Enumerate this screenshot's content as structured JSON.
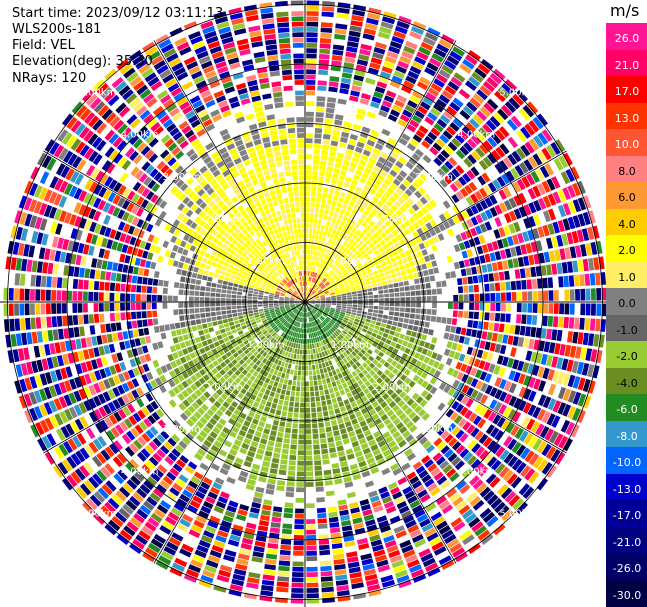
{
  "header": {
    "start_time": "Start time: 2023/09/12 03:11:13",
    "instrument": "WLS200s-181",
    "field": "Field: VEL",
    "elevation": "Elevation(deg): 35.30",
    "nrays": "NRays: 120"
  },
  "colorbar": {
    "unit": "m/s",
    "labels": [
      "26.0",
      "21.0",
      "17.0",
      "13.0",
      "10.0",
      "8.0",
      "6.0",
      "4.0",
      "2.0",
      "1.0",
      "0.0",
      "-1.0",
      "-2.0",
      "-4.0",
      "-6.0",
      "-8.0",
      "-10.0",
      "-13.0",
      "-17.0",
      "-21.0",
      "-26.0",
      "-30.0"
    ],
    "colors": [
      "#ff1493",
      "#ff0066",
      "#ff0000",
      "#ff3300",
      "#ff5533",
      "#ff8080",
      "#ff9933",
      "#ffcc00",
      "#ffff00",
      "#ffee66",
      "#808080",
      "#666666",
      "#99cc33",
      "#6b8e23",
      "#228b22",
      "#3399cc",
      "#0066ff",
      "#0000cc",
      "#000099",
      "#000080",
      "#000066",
      "#000044"
    ]
  },
  "chart_data": {
    "type": "ppi",
    "field": "VEL",
    "units": "m/s",
    "range_rings_km": [
      1,
      2,
      3,
      4,
      5
    ],
    "range_labels": [
      "1.00km",
      "2.00km",
      "3.00km",
      "4.00km",
      "5.00km"
    ],
    "spoke_step_deg": 30,
    "nrays": 120,
    "elevation_deg": 35.3,
    "pattern": {
      "north_inner": "positive velocities 1 to 4 m/s, gate values reaching ~10 m/s near center",
      "south_inner": "negative velocities -2 to -6 m/s",
      "east_west_band": "near zero velocities (-1 to 1 m/s)",
      "outer": "noisy, all colors"
    }
  }
}
